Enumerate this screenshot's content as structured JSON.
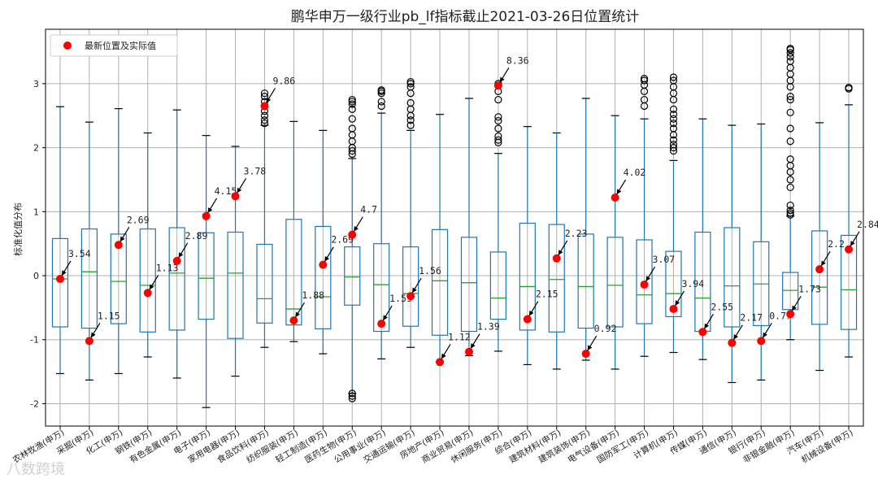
{
  "chart_data": {
    "type": "box",
    "title": "鹏华申万一级行业pb_lf指标截止2021-03-26日位置统计",
    "ylabel": "标准化值分布",
    "ylim": [
      -2.35,
      3.85
    ],
    "yticks": [
      -2,
      -1,
      0,
      1,
      2,
      3
    ],
    "grid": true,
    "legend": {
      "label": "最新位置及实际值",
      "placement": "top-left"
    },
    "colors": {
      "box": "#1f77b4",
      "median": "#2ca02c",
      "marker": "#ff0000",
      "outlier": "#000000",
      "grid": "#b0b0b0"
    },
    "categories": [
      {
        "name": "农林牧渔(申万)",
        "whislo": -1.53,
        "q1": -0.8,
        "med": -0.05,
        "q3": 0.58,
        "whishi": 2.64,
        "outliers": [],
        "latest": -0.05,
        "label": "3.54"
      },
      {
        "name": "采掘(申万)",
        "whislo": -1.63,
        "q1": -0.82,
        "med": 0.06,
        "q3": 0.73,
        "whishi": 2.4,
        "outliers": [],
        "latest": -1.02,
        "label": "1.15"
      },
      {
        "name": "化工(申万)",
        "whislo": -1.53,
        "q1": -0.75,
        "med": -0.09,
        "q3": 0.65,
        "whishi": 2.61,
        "outliers": [],
        "latest": 0.48,
        "label": "2.69"
      },
      {
        "name": "钢铁(申万)",
        "whislo": -1.27,
        "q1": -0.88,
        "med": -0.15,
        "q3": 0.73,
        "whishi": 2.23,
        "outliers": [],
        "latest": -0.27,
        "label": "1.13"
      },
      {
        "name": "有色金属(申万)",
        "whislo": -1.6,
        "q1": -0.85,
        "med": 0.04,
        "q3": 0.75,
        "whishi": 2.59,
        "outliers": [],
        "latest": 0.23,
        "label": "2.89"
      },
      {
        "name": "电子(申万)",
        "whislo": -2.06,
        "q1": -0.68,
        "med": -0.04,
        "q3": 0.67,
        "whishi": 2.19,
        "outliers": [],
        "latest": 0.93,
        "label": "4.15"
      },
      {
        "name": "家用电器(申万)",
        "whislo": -1.57,
        "q1": -0.98,
        "med": 0.04,
        "q3": 0.68,
        "whishi": 2.02,
        "outliers": [],
        "latest": 1.24,
        "label": "3.78"
      },
      {
        "name": "食品饮料(申万)",
        "whislo": -1.12,
        "q1": -0.74,
        "med": -0.36,
        "q3": 0.49,
        "whishi": 2.35,
        "outliers": [
          2.38,
          2.43,
          2.5,
          2.57,
          2.65,
          2.72,
          2.8,
          2.85
        ],
        "latest": 2.65,
        "label": "9.86"
      },
      {
        "name": "纺织服装(申万)",
        "whislo": -1.03,
        "q1": -0.77,
        "med": -0.52,
        "q3": 0.88,
        "whishi": 2.41,
        "outliers": [],
        "latest": -0.7,
        "label": "1.88"
      },
      {
        "name": "轻工制造(申万)",
        "whislo": -1.22,
        "q1": -0.83,
        "med": -0.33,
        "q3": 0.77,
        "whishi": 2.27,
        "outliers": [],
        "latest": 0.17,
        "label": "2.69"
      },
      {
        "name": "医药生物(申万)",
        "whislo": -1.84,
        "q1": -0.46,
        "med": -0.02,
        "q3": 0.45,
        "whishi": 1.83,
        "outliers": [
          -1.84,
          -1.88,
          -1.92,
          1.9,
          1.95,
          2.0,
          2.1,
          2.2,
          2.3,
          2.45,
          2.6,
          2.68,
          2.72,
          2.75
        ],
        "latest": 0.64,
        "label": "4.7"
      },
      {
        "name": "公用事业(申万)",
        "whislo": -1.3,
        "q1": -0.87,
        "med": -0.14,
        "q3": 0.5,
        "whishi": 2.54,
        "outliers": [
          2.65,
          2.72,
          2.85,
          2.88,
          2.9
        ],
        "latest": -0.75,
        "label": "1.59"
      },
      {
        "name": "交通运输(申万)",
        "whislo": -1.12,
        "q1": -0.79,
        "med": -0.28,
        "q3": 0.45,
        "whishi": 2.27,
        "outliers": [
          2.35,
          2.43,
          2.5,
          2.6,
          2.7,
          2.85,
          2.95,
          3.0,
          3.03
        ],
        "latest": -0.32,
        "label": "1.56"
      },
      {
        "name": "房地产(申万)",
        "whislo": -1.35,
        "q1": -0.93,
        "med": -0.08,
        "q3": 0.72,
        "whishi": 2.52,
        "outliers": [],
        "latest": -1.35,
        "label": "1.12"
      },
      {
        "name": "商业贸易(申万)",
        "whislo": -1.25,
        "q1": -0.87,
        "med": -0.11,
        "q3": 0.6,
        "whishi": 2.77,
        "outliers": [],
        "latest": -1.19,
        "label": "1.39"
      },
      {
        "name": "休闲服务(申万)",
        "whislo": -1.18,
        "q1": -0.68,
        "med": -0.35,
        "q3": 0.37,
        "whishi": 1.91,
        "outliers": [
          2.08,
          2.12,
          2.18,
          2.3,
          2.42,
          2.48,
          2.75,
          2.88,
          2.97,
          3.0
        ],
        "latest": 2.97,
        "label": "8.36"
      },
      {
        "name": "综合(申万)",
        "whislo": -1.39,
        "q1": -0.85,
        "med": -0.17,
        "q3": 0.82,
        "whishi": 2.33,
        "outliers": [],
        "latest": -0.68,
        "label": "2.15"
      },
      {
        "name": "建筑材料(申万)",
        "whislo": -1.46,
        "q1": -0.88,
        "med": -0.06,
        "q3": 0.8,
        "whishi": 2.23,
        "outliers": [],
        "latest": 0.27,
        "label": "2.23"
      },
      {
        "name": "建筑装饰(申万)",
        "whislo": -1.32,
        "q1": -0.82,
        "med": -0.17,
        "q3": 0.65,
        "whishi": 2.77,
        "outliers": [],
        "latest": -1.22,
        "label": "0.92"
      },
      {
        "name": "电气设备(申万)",
        "whislo": -1.46,
        "q1": -0.8,
        "med": -0.15,
        "q3": 0.6,
        "whishi": 2.5,
        "outliers": [],
        "latest": 1.22,
        "label": "4.02"
      },
      {
        "name": "国防军工(申万)",
        "whislo": -1.26,
        "q1": -0.75,
        "med": -0.3,
        "q3": 0.56,
        "whishi": 2.45,
        "outliers": [
          2.65,
          2.75,
          2.88,
          2.98,
          3.05,
          3.08
        ],
        "latest": -0.14,
        "label": "3.07"
      },
      {
        "name": "计算机(申万)",
        "whislo": -1.2,
        "q1": -0.64,
        "med": -0.28,
        "q3": 0.38,
        "whishi": 1.8,
        "outliers": [
          1.95,
          2.0,
          2.05,
          2.12,
          2.2,
          2.3,
          2.38,
          2.45,
          2.52,
          2.6,
          2.75,
          2.85,
          2.95,
          3.05,
          3.1
        ],
        "latest": -0.52,
        "label": "3.94"
      },
      {
        "name": "传媒(申万)",
        "whislo": -1.31,
        "q1": -0.87,
        "med": -0.35,
        "q3": 0.68,
        "whishi": 2.45,
        "outliers": [],
        "latest": -0.88,
        "label": "2.55"
      },
      {
        "name": "通信(申万)",
        "whislo": -1.67,
        "q1": -0.8,
        "med": -0.16,
        "q3": 0.75,
        "whishi": 2.35,
        "outliers": [],
        "latest": -1.05,
        "label": "2.17"
      },
      {
        "name": "银行(申万)",
        "whislo": -1.63,
        "q1": -0.78,
        "med": -0.13,
        "q3": 0.53,
        "whishi": 2.37,
        "outliers": [],
        "latest": -1.02,
        "label": "0.77"
      },
      {
        "name": "非银金融(申万)",
        "whislo": -1.0,
        "q1": -0.53,
        "med": -0.23,
        "q3": 0.05,
        "whishi": 0.93,
        "outliers": [
          0.95,
          0.98,
          1.02,
          1.1,
          1.38,
          1.5,
          1.62,
          1.72,
          1.82,
          2.1,
          2.3,
          2.55,
          2.75,
          2.8,
          2.95,
          3.05,
          3.15,
          3.25,
          3.35,
          3.42,
          3.48,
          3.53,
          3.55
        ],
        "latest": -0.6,
        "label": "1.73"
      },
      {
        "name": "汽车(申万)",
        "whislo": -1.48,
        "q1": -0.76,
        "med": -0.18,
        "q3": 0.7,
        "whishi": 2.39,
        "outliers": [],
        "latest": 0.1,
        "label": "2.2"
      },
      {
        "name": "机械设备(申万)",
        "whislo": -1.27,
        "q1": -0.84,
        "med": -0.22,
        "q3": 0.63,
        "whishi": 2.67,
        "outliers": [
          2.92,
          2.94
        ],
        "latest": 0.41,
        "label": "2.84"
      }
    ]
  },
  "watermark": "八数跨境"
}
